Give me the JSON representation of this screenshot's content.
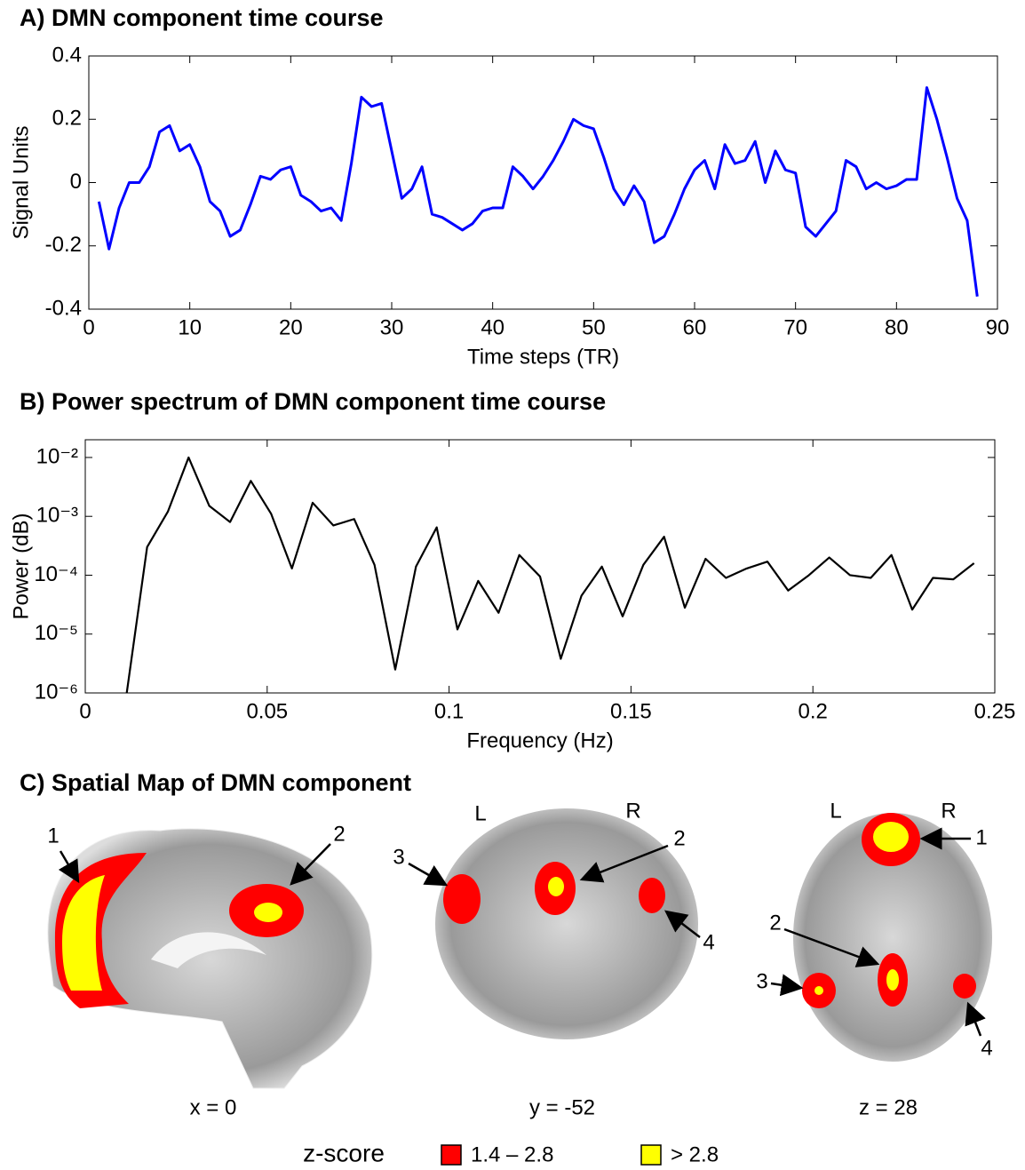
{
  "chart_data": [
    {
      "type": "line",
      "title": "A) DMN component time course",
      "x_label": "Time steps (TR)",
      "y_label": "Signal Units",
      "color": "#0000ff",
      "x": [
        1,
        2,
        3,
        4,
        5,
        6,
        7,
        8,
        9,
        10,
        11,
        12,
        13,
        14,
        15,
        16,
        17,
        18,
        19,
        20,
        21,
        22,
        23,
        24,
        25,
        26,
        27,
        28,
        29,
        30,
        31,
        32,
        33,
        34,
        35,
        36,
        37,
        38,
        39,
        40,
        41,
        42,
        43,
        44,
        45,
        46,
        47,
        48,
        49,
        50,
        51,
        52,
        53,
        54,
        55,
        56,
        57,
        58,
        59,
        60,
        61,
        62,
        63,
        64,
        65,
        66,
        67,
        68,
        69,
        70,
        71,
        72,
        73,
        74,
        75,
        76,
        77,
        78,
        79,
        80,
        81,
        82,
        83,
        84,
        85,
        86,
        87,
        88
      ],
      "values": [
        -0.06,
        -0.21,
        -0.08,
        0.0,
        0.0,
        0.05,
        0.16,
        0.18,
        0.1,
        0.12,
        0.05,
        -0.06,
        -0.09,
        -0.17,
        -0.15,
        -0.07,
        0.02,
        0.01,
        0.04,
        0.05,
        -0.04,
        -0.06,
        -0.09,
        -0.08,
        -0.12,
        0.06,
        0.27,
        0.24,
        0.25,
        0.1,
        -0.05,
        -0.02,
        0.05,
        -0.1,
        -0.11,
        -0.13,
        -0.15,
        -0.13,
        -0.09,
        -0.08,
        -0.08,
        0.05,
        0.02,
        -0.02,
        0.02,
        0.07,
        0.13,
        0.2,
        0.18,
        0.17,
        0.08,
        -0.02,
        -0.07,
        -0.01,
        -0.06,
        -0.19,
        -0.17,
        -0.1,
        -0.02,
        0.04,
        0.07,
        -0.02,
        0.12,
        0.06,
        0.07,
        0.13,
        0.0,
        0.1,
        0.04,
        0.03,
        -0.14,
        -0.17,
        -0.13,
        -0.09,
        0.07,
        0.05,
        -0.02,
        0.0,
        -0.02,
        -0.01,
        0.01,
        0.01,
        0.3,
        0.2,
        0.08,
        -0.05,
        -0.12,
        -0.36
      ],
      "xlim": [
        0,
        90
      ],
      "xticks": [
        0,
        10,
        20,
        30,
        40,
        50,
        60,
        70,
        80,
        90
      ],
      "ylim": [
        -0.4,
        0.4
      ],
      "yticks": [
        -0.4,
        -0.2,
        0,
        0.2,
        0.4
      ]
    },
    {
      "type": "line",
      "title": "B) Power spectrum of DMN component time course",
      "x_label": "Frequency (Hz)",
      "y_label": "Power (dB)",
      "color": "#000000",
      "log_y": true,
      "x": [
        0.0114,
        0.017,
        0.0227,
        0.0284,
        0.0341,
        0.0398,
        0.0455,
        0.0511,
        0.0568,
        0.0625,
        0.0682,
        0.0739,
        0.0795,
        0.0852,
        0.0909,
        0.0966,
        0.1023,
        0.108,
        0.1136,
        0.1193,
        0.125,
        0.1307,
        0.1364,
        0.142,
        0.1477,
        0.1534,
        0.1591,
        0.1648,
        0.1705,
        0.1761,
        0.1818,
        0.1875,
        0.1932,
        0.1989,
        0.2045,
        0.2102,
        0.2159,
        0.2216,
        0.2273,
        0.233,
        0.2386,
        0.2443
      ],
      "values": [
        1e-06,
        0.0003,
        0.0012,
        0.01,
        0.0015,
        0.0008,
        0.004,
        0.0011,
        0.00013,
        0.0017,
        0.0007,
        0.0009,
        0.00015,
        2.5e-06,
        0.00014,
        0.00065,
        1.2e-05,
        8e-05,
        2.3e-05,
        0.00022,
        9.5e-05,
        3.8e-06,
        4.5e-05,
        0.00014,
        2e-05,
        0.00015,
        0.00045,
        2.8e-05,
        0.00019,
        9e-05,
        0.00013,
        0.00017,
        5.5e-05,
        0.0001,
        0.0002,
        0.0001,
        9e-05,
        0.00022,
        2.6e-05,
        9e-05,
        8.5e-05,
        0.00016
      ],
      "xlim": [
        0,
        0.25
      ],
      "xticks": [
        0,
        0.05,
        0.1,
        0.15,
        0.2,
        0.25
      ],
      "ylim": [
        1e-06,
        0.02
      ],
      "yticks": [
        {
          "value": 1e-06,
          "label": "10⁻⁶"
        },
        {
          "value": 1e-05,
          "label": "10⁻⁵"
        },
        {
          "value": 0.0001,
          "label": "10⁻⁴"
        },
        {
          "value": 0.001,
          "label": "10⁻³"
        },
        {
          "value": 0.01,
          "label": "10⁻²"
        }
      ]
    }
  ],
  "spatial_map": {
    "title": "C) Spatial Map of DMN component",
    "sagittal": {
      "coordinate": "x = 0",
      "labels": [
        "1",
        "2"
      ]
    },
    "coronal": {
      "coordinate": "y = -52",
      "left": "L",
      "right": "R",
      "labels": [
        "3",
        "2",
        "4"
      ]
    },
    "axial": {
      "coordinate": "z = 28",
      "left": "L",
      "right": "R",
      "labels": [
        "1",
        "2",
        "3",
        "4"
      ]
    },
    "legend": {
      "title": "z-score",
      "items": [
        {
          "label": "1.4 – 2.8",
          "color": "#ff0000"
        },
        {
          "label": "> 2.8",
          "color": "#ffff00"
        }
      ]
    }
  }
}
